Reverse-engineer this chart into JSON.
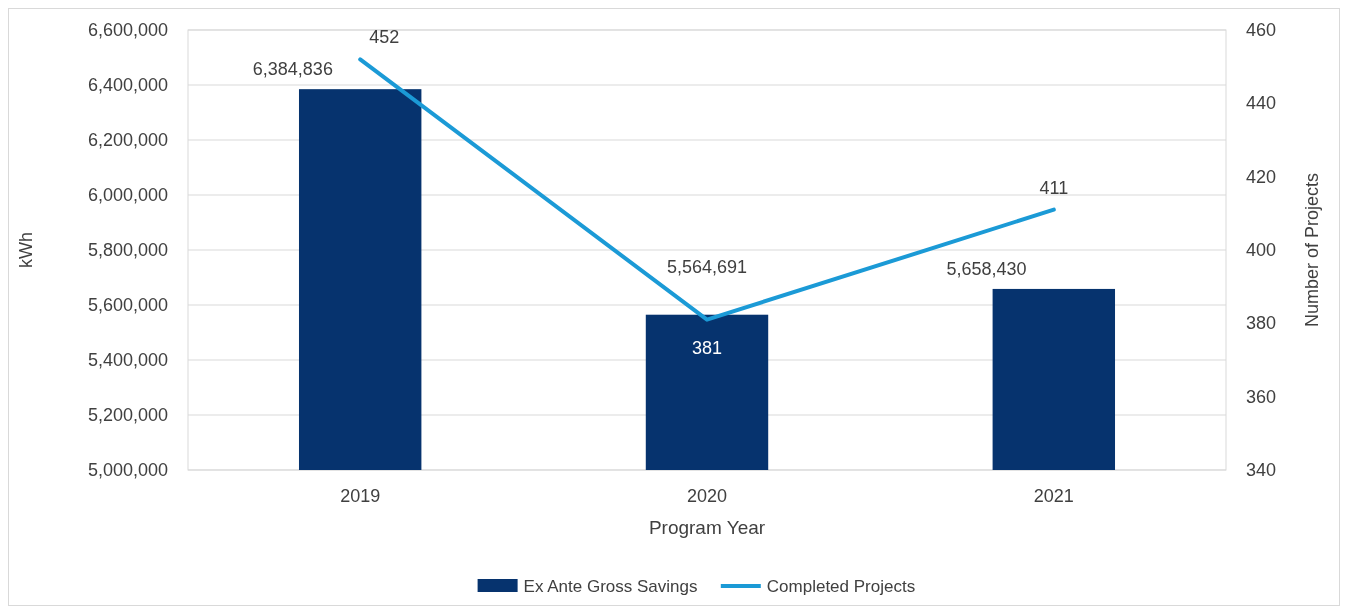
{
  "chart_data": {
    "type": "bar",
    "categories": [
      "2019",
      "2020",
      "2021"
    ],
    "xlabel": "Program Year",
    "ylabel": "kWh",
    "y2label": "Number of Projects",
    "series": [
      {
        "name": "Ex Ante Gross Savings",
        "color": "#06336e",
        "values": [
          6384836,
          5564691,
          5658430
        ],
        "value_labels": [
          "6,384,836",
          "5,564,691",
          "5,658,430"
        ]
      },
      {
        "name": "Completed Projects",
        "type": "line",
        "axis": "y2",
        "color": "#1b9ad6",
        "values": [
          452,
          381,
          411
        ]
      }
    ],
    "ylim": [
      5000000,
      6600000
    ],
    "yticks": [
      {
        "value": 5000000,
        "label": "5,000,000"
      },
      {
        "value": 5200000,
        "label": "5,200,000"
      },
      {
        "value": 5400000,
        "label": "5,400,000"
      },
      {
        "value": 5600000,
        "label": "5,600,000"
      },
      {
        "value": 5800000,
        "label": "5,800,000"
      },
      {
        "value": 6000000,
        "label": "6,000,000"
      },
      {
        "value": 6200000,
        "label": "6,200,000"
      },
      {
        "value": 6400000,
        "label": "6,400,000"
      },
      {
        "value": 6600000,
        "label": "6,600,000"
      }
    ],
    "y2lim": [
      340,
      460
    ],
    "y2ticks": [
      340,
      360,
      380,
      400,
      420,
      440,
      460
    ],
    "data_labels": true,
    "legend": "bottom",
    "grid": true,
    "marker": "none",
    "line_style": "solid"
  }
}
